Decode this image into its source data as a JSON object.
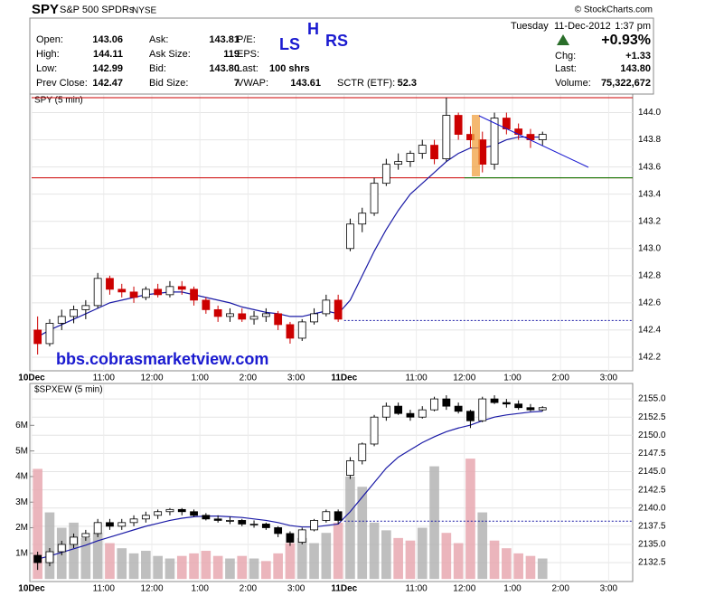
{
  "header": {
    "symbol": "SPY",
    "name": "S&P 500 SPDRs",
    "exchange": "NYSE",
    "credit": "© StockCharts.com",
    "day": "Tuesday",
    "date": "11-Dec-2012",
    "time": "1:37 pm",
    "change_pct": "+0.93%",
    "stats": [
      {
        "label": "Open:",
        "value": "143.06"
      },
      {
        "label": "High:",
        "value": "144.11"
      },
      {
        "label": "Low:",
        "value": "142.99"
      },
      {
        "label": "Prev Close:",
        "value": "142.47"
      },
      {
        "label": "Ask:",
        "value": "143.81"
      },
      {
        "label": "Ask Size:",
        "value": "119"
      },
      {
        "label": "Bid:",
        "value": "143.80"
      },
      {
        "label": "Bid Size:",
        "value": "7"
      },
      {
        "label": "P/E:"
      },
      {
        "label": "EPS:"
      },
      {
        "label": "Last:",
        "value": "100 shrs"
      },
      {
        "label": "VWAP:",
        "value": "143.61"
      },
      {
        "label": "SCTR (ETF):",
        "value": "52.3"
      },
      {
        "label": "Chg:",
        "value": "+1.33"
      },
      {
        "label": "Last:",
        "value": "143.80"
      },
      {
        "label": "Volume:",
        "value": "75,322,672"
      }
    ]
  },
  "annotations": [
    "LS",
    "H",
    "RS"
  ],
  "website": "bbs.cobrasmarketview.com",
  "chart_data": [
    {
      "type": "candlestick",
      "title": "SPY (5 min)",
      "up_color": "#000000",
      "down_color": "#cc0000",
      "grid": true,
      "categories": [
        "10Dec",
        null,
        null,
        null,
        null,
        null,
        "11:00",
        null,
        null,
        null,
        "12:00",
        null,
        null,
        null,
        "1:00",
        null,
        null,
        null,
        "2:00",
        null,
        null,
        null,
        "3:00",
        null,
        null,
        null,
        "11Dec",
        null,
        null,
        null,
        null,
        null,
        "11:00",
        null,
        null,
        null,
        "12:00",
        null,
        null,
        null,
        "1:00",
        null,
        null,
        null,
        "2:00",
        null,
        null,
        null,
        "3:00",
        null
      ],
      "open": [
        142.4,
        142.3,
        142.45,
        142.5,
        142.55,
        142.58,
        142.78,
        142.7,
        142.68,
        142.64,
        142.7,
        142.66,
        142.72,
        142.7,
        142.62,
        142.55,
        142.5,
        142.52,
        142.48,
        142.5,
        142.52,
        142.44,
        142.34,
        142.46,
        142.52,
        142.62,
        143.0,
        143.18,
        143.26,
        143.48,
        143.62,
        143.64,
        143.7,
        143.76,
        143.66,
        143.98,
        143.84,
        143.8,
        143.62,
        143.96,
        143.88,
        143.84,
        143.8,
        null,
        null,
        null,
        null,
        null,
        null,
        null
      ],
      "high": [
        142.5,
        142.48,
        142.55,
        142.58,
        142.62,
        142.82,
        142.8,
        142.74,
        142.72,
        142.72,
        142.74,
        142.76,
        142.76,
        142.72,
        142.64,
        142.58,
        142.56,
        142.56,
        142.54,
        142.56,
        142.54,
        142.46,
        142.48,
        142.56,
        142.66,
        142.66,
        143.22,
        143.3,
        143.52,
        143.66,
        143.7,
        143.72,
        143.8,
        143.8,
        144.11,
        144.0,
        143.9,
        143.86,
        144.0,
        144.0,
        143.92,
        143.88,
        143.86,
        null,
        null,
        null,
        null,
        null,
        null,
        null
      ],
      "low": [
        142.22,
        142.28,
        142.4,
        142.45,
        142.48,
        142.56,
        142.66,
        142.64,
        142.6,
        142.62,
        142.64,
        142.64,
        142.66,
        142.58,
        142.52,
        142.46,
        142.46,
        142.46,
        142.44,
        142.46,
        142.4,
        142.3,
        142.32,
        142.44,
        142.5,
        142.46,
        142.98,
        143.12,
        143.24,
        143.46,
        143.58,
        143.6,
        143.66,
        143.62,
        143.64,
        143.8,
        143.74,
        143.56,
        143.58,
        143.84,
        143.8,
        143.74,
        143.76,
        null,
        null,
        null,
        null,
        null,
        null,
        null
      ],
      "close": [
        142.3,
        142.45,
        142.5,
        142.55,
        142.58,
        142.78,
        142.7,
        142.68,
        142.64,
        142.7,
        142.66,
        142.72,
        142.7,
        142.62,
        142.55,
        142.5,
        142.52,
        142.48,
        142.5,
        142.52,
        142.44,
        142.34,
        142.46,
        142.52,
        142.62,
        142.48,
        143.18,
        143.26,
        143.48,
        143.62,
        143.64,
        143.7,
        143.76,
        143.66,
        143.98,
        143.84,
        143.8,
        143.62,
        143.96,
        143.88,
        143.84,
        143.8,
        143.84,
        null,
        null,
        null,
        null,
        null,
        null,
        null
      ],
      "ma": {
        "color": "#1a1aa6",
        "values": [
          142.35,
          142.4,
          142.44,
          142.48,
          142.52,
          142.56,
          142.6,
          142.62,
          142.64,
          142.66,
          142.67,
          142.68,
          142.68,
          142.66,
          142.64,
          142.62,
          142.6,
          142.57,
          142.55,
          142.53,
          142.52,
          142.5,
          142.5,
          142.52,
          142.54,
          142.52,
          142.62,
          142.8,
          142.98,
          143.14,
          143.28,
          143.4,
          143.48,
          143.56,
          143.64,
          143.7,
          143.74,
          143.74,
          143.76,
          143.8,
          143.82,
          143.82,
          143.82,
          null,
          null,
          null,
          null,
          null,
          null,
          null
        ]
      },
      "reference_lines": [
        {
          "value": 144.11,
          "color": "#cc0000",
          "from": 0
        },
        {
          "value": 143.52,
          "color": "#cc0000",
          "from": 0
        },
        {
          "value": 143.52,
          "color": "#008000",
          "from": 36
        },
        {
          "value": 142.47,
          "color": "#1a1aa6",
          "from": 26,
          "dashed": true
        }
      ],
      "ylim": [
        142.1,
        144.13
      ],
      "yticks": [
        142.2,
        142.4,
        142.6,
        142.8,
        {
          "value": 143,
          "label": "143.0"
        },
        143.2,
        143.4,
        143.6,
        143.8,
        {
          "value": 144,
          "label": "144.0"
        }
      ]
    },
    {
      "type": "candlestick",
      "title": "$SPXEW (5 min)",
      "up_color": "#000000",
      "down_color": "#000000",
      "grid": true,
      "categories": [
        "10Dec",
        null,
        null,
        null,
        null,
        null,
        "11:00",
        null,
        null,
        null,
        "12:00",
        null,
        null,
        null,
        "1:00",
        null,
        null,
        null,
        "2:00",
        null,
        null,
        null,
        "3:00",
        null,
        null,
        null,
        "11Dec",
        null,
        null,
        null,
        null,
        null,
        "11:00",
        null,
        null,
        null,
        "12:00",
        null,
        null,
        null,
        "1:00",
        null,
        null,
        null,
        "2:00",
        null,
        null,
        null,
        "3:00",
        null
      ],
      "open": [
        2133.5,
        2132.5,
        2134.0,
        2135.0,
        2136.0,
        2136.5,
        2138.0,
        2137.5,
        2138.0,
        2138.5,
        2139.0,
        2139.5,
        2139.8,
        2139.5,
        2139.0,
        2138.5,
        2138.3,
        2138.3,
        2137.8,
        2137.8,
        2137.3,
        2136.5,
        2135.3,
        2137.0,
        2138.3,
        2139.5,
        2144.5,
        2146.5,
        2148.8,
        2152.5,
        2154.0,
        2153.0,
        2152.5,
        2153.5,
        2155.0,
        2154.0,
        2153.3,
        2152.0,
        2155.0,
        2154.5,
        2154.3,
        2153.8,
        2153.5,
        null,
        null,
        null,
        null,
        null,
        null,
        null
      ],
      "high": [
        2134.0,
        2134.5,
        2135.5,
        2136.5,
        2137.0,
        2138.5,
        2138.5,
        2138.5,
        2139.0,
        2139.5,
        2139.8,
        2140.0,
        2140.0,
        2139.8,
        2139.3,
        2139.0,
        2138.8,
        2138.5,
        2138.3,
        2138.0,
        2137.5,
        2136.8,
        2137.3,
        2138.5,
        2139.8,
        2139.8,
        2147.0,
        2149.0,
        2152.8,
        2154.5,
        2154.5,
        2153.5,
        2154.0,
        2155.3,
        2155.5,
        2154.5,
        2153.5,
        2155.3,
        2155.5,
        2155.0,
        2154.8,
        2154.3,
        2154.0,
        null,
        null,
        null,
        null,
        null,
        null,
        null
      ],
      "low": [
        2131.5,
        2132.0,
        2133.5,
        2134.5,
        2135.5,
        2136.0,
        2137.0,
        2137.0,
        2137.5,
        2138.0,
        2138.5,
        2139.0,
        2139.0,
        2138.8,
        2138.3,
        2138.0,
        2137.8,
        2137.5,
        2137.3,
        2137.0,
        2136.0,
        2134.8,
        2135.0,
        2136.8,
        2138.0,
        2137.8,
        2144.0,
        2146.0,
        2148.5,
        2152.0,
        2152.8,
        2152.0,
        2152.3,
        2153.3,
        2153.5,
        2153.0,
        2151.0,
        2151.8,
        2154.3,
        2153.8,
        2153.5,
        2153.3,
        2153.3,
        null,
        null,
        null,
        null,
        null,
        null,
        null
      ],
      "close": [
        2132.5,
        2134.0,
        2135.0,
        2136.0,
        2136.5,
        2138.0,
        2137.5,
        2138.0,
        2138.5,
        2139.0,
        2139.5,
        2139.8,
        2139.5,
        2139.0,
        2138.5,
        2138.3,
        2138.3,
        2137.8,
        2137.8,
        2137.3,
        2136.5,
        2135.3,
        2137.0,
        2138.3,
        2139.5,
        2138.3,
        2146.5,
        2148.8,
        2152.5,
        2154.0,
        2153.0,
        2152.5,
        2153.5,
        2155.0,
        2154.0,
        2153.3,
        2152.0,
        2155.0,
        2154.5,
        2154.3,
        2153.8,
        2153.5,
        2153.8,
        null,
        null,
        null,
        null,
        null,
        null,
        null
      ],
      "ma": {
        "color": "#1a1aa6",
        "values": [
          2133.0,
          2133.4,
          2133.9,
          2134.4,
          2134.9,
          2135.5,
          2136.0,
          2136.5,
          2137.0,
          2137.5,
          2137.9,
          2138.3,
          2138.6,
          2138.8,
          2138.9,
          2138.9,
          2138.8,
          2138.7,
          2138.5,
          2138.3,
          2138.0,
          2137.6,
          2137.4,
          2137.4,
          2137.6,
          2137.8,
          2139.5,
          2141.5,
          2143.5,
          2145.5,
          2147.0,
          2148.0,
          2149.0,
          2149.8,
          2150.5,
          2151.0,
          2151.4,
          2152.0,
          2152.5,
          2152.8,
          2153.0,
          2153.2,
          2153.3,
          null,
          null,
          null,
          null,
          null,
          null,
          null
        ]
      },
      "volume": {
        "axis": "y2",
        "up_color": "#b4b4b4",
        "down_color": "#e8a8b0",
        "values": [
          4300000,
          2600000,
          2000000,
          2200000,
          1600000,
          1800000,
          1400000,
          1200000,
          1000000,
          1100000,
          900000,
          800000,
          900000,
          1000000,
          1100000,
          900000,
          800000,
          900000,
          800000,
          700000,
          1000000,
          1400000,
          1600000,
          1400000,
          1800000,
          2200000,
          4000000,
          3600000,
          2200000,
          1900000,
          1600000,
          1500000,
          2000000,
          4400000,
          1800000,
          1400000,
          4700000,
          2600000,
          1500000,
          1200000,
          1000000,
          900000,
          800000,
          null,
          null,
          null,
          null,
          null,
          null,
          null
        ]
      },
      "reference_lines": [
        {
          "value": 2138.2,
          "color": "#1a1aa6",
          "from": 26,
          "dashed": true
        }
      ],
      "ylim": [
        2129.9,
        2157.0
      ],
      "yticks": [
        2132.5,
        {
          "value": 2135,
          "label": "2135.0"
        },
        2137.5,
        {
          "value": 2140,
          "label": "2140.0"
        },
        2142.5,
        {
          "value": 2145,
          "label": "2145.0"
        },
        2147.5,
        {
          "value": 2150,
          "label": "2150.0"
        },
        2152.5,
        {
          "value": 2155,
          "label": "2155.0"
        }
      ],
      "y2lim": [
        -100000,
        7600000
      ],
      "y2ticks": [
        {
          "value": 1000000,
          "label": "1M"
        },
        {
          "value": 2000000,
          "label": "2M"
        },
        {
          "value": 3000000,
          "label": "3M"
        },
        {
          "value": 4000000,
          "label": "4M"
        },
        {
          "value": 5000000,
          "label": "5M"
        },
        {
          "value": 6000000,
          "label": "6M"
        }
      ]
    }
  ]
}
